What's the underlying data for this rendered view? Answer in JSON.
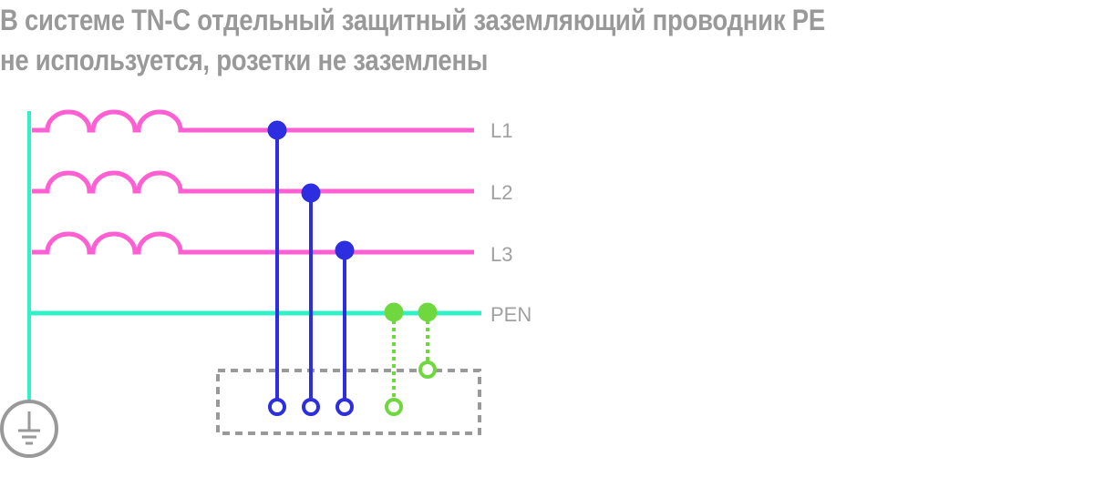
{
  "title": {
    "line1": "В системе TN-C отдельный защитный заземляющий проводник PE",
    "line2": "не используется, розетки не заземлены"
  },
  "diagram": {
    "conductors": [
      {
        "label": "L1",
        "color": "#ff5fd2"
      },
      {
        "label": "L2",
        "color": "#ff5fd2"
      },
      {
        "label": "L3",
        "color": "#ff5fd2"
      },
      {
        "label": "PEN",
        "color": "#33f0c8"
      }
    ],
    "colors": {
      "phase": "#ff5fd2",
      "pen": "#33f0c8",
      "socket_phase": "#2c2ee0",
      "socket_pen": "#6fd83f",
      "socket_box": "#999999",
      "ground": "#999999"
    },
    "icons": {
      "ground": "ground-symbol-icon"
    }
  }
}
